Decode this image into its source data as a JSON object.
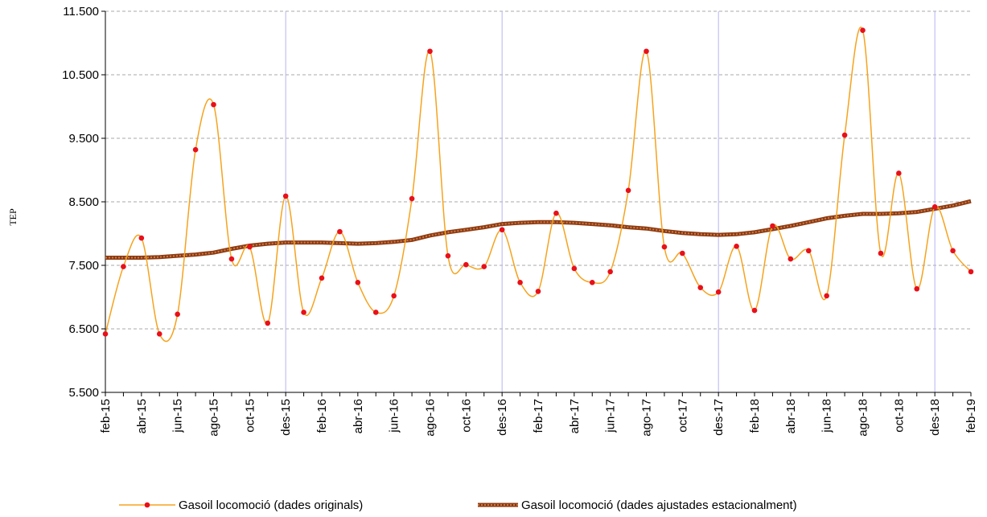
{
  "chart_data": {
    "type": "line",
    "y_label": "TEP",
    "categories": [
      "feb-15",
      null,
      "abr-15",
      null,
      "jun-15",
      null,
      "ago-15",
      null,
      "oct-15",
      null,
      "des-15",
      null,
      "feb-16",
      null,
      "abr-16",
      null,
      "jun-16",
      null,
      "ago-16",
      null,
      "oct-16",
      null,
      "des-16",
      null,
      "feb-17",
      null,
      "abr-17",
      null,
      "jun-17",
      null,
      "ago-17",
      null,
      "oct-17",
      null,
      "des-17",
      null,
      "feb-18",
      null,
      "abr-18",
      null,
      "jun-18",
      null,
      "ago-18",
      null,
      "oct-18",
      null,
      "des-18",
      null,
      "feb-19"
    ],
    "series": [
      {
        "name": "Gasoil locomoció (dades originals)",
        "color": "#f5a31e",
        "marker_color": "#e8101a",
        "smooth": true,
        "values": [
          6420,
          7480,
          7930,
          6420,
          6730,
          9320,
          10030,
          7600,
          7790,
          6590,
          8590,
          6760,
          7300,
          8030,
          7230,
          6760,
          7020,
          8550,
          10870,
          7650,
          7510,
          7480,
          8060,
          7230,
          7090,
          8320,
          7450,
          7230,
          7400,
          8680,
          10870,
          7790,
          7690,
          7150,
          7080,
          7800,
          6790,
          8120,
          7600,
          7730,
          7020,
          9550,
          11200,
          7690,
          8950,
          7130,
          8420,
          7730,
          7400
        ]
      },
      {
        "name": "Gasoil locomoció (dades ajustades estacionalment)",
        "color": "#8b3a12",
        "dot_color": "#d07a45",
        "values": [
          7620,
          7620,
          7620,
          7630,
          7650,
          7670,
          7700,
          7760,
          7810,
          7840,
          7860,
          7860,
          7860,
          7850,
          7840,
          7850,
          7870,
          7900,
          7970,
          8020,
          8060,
          8100,
          8150,
          8170,
          8180,
          8180,
          8170,
          8150,
          8130,
          8100,
          8080,
          8040,
          8010,
          7990,
          7980,
          7990,
          8020,
          8070,
          8120,
          8180,
          8240,
          8280,
          8310,
          8310,
          8320,
          8340,
          8390,
          8440,
          8510
        ]
      }
    ],
    "ylim": [
      5500,
      11500
    ],
    "yticks": [
      {
        "value": 5500,
        "label": "5.500"
      },
      {
        "value": 6500,
        "label": "6.500"
      },
      {
        "value": 7500,
        "label": "7.500"
      },
      {
        "value": 8500,
        "label": "8.500"
      },
      {
        "value": 9500,
        "label": "9.500"
      },
      {
        "value": 10500,
        "label": "10.500"
      },
      {
        "value": 11500,
        "label": "11.500"
      }
    ],
    "grid": true,
    "xgrid_at": [
      "des-15",
      "des-16",
      "des-17",
      "des-18"
    ],
    "legend": "bottom"
  }
}
